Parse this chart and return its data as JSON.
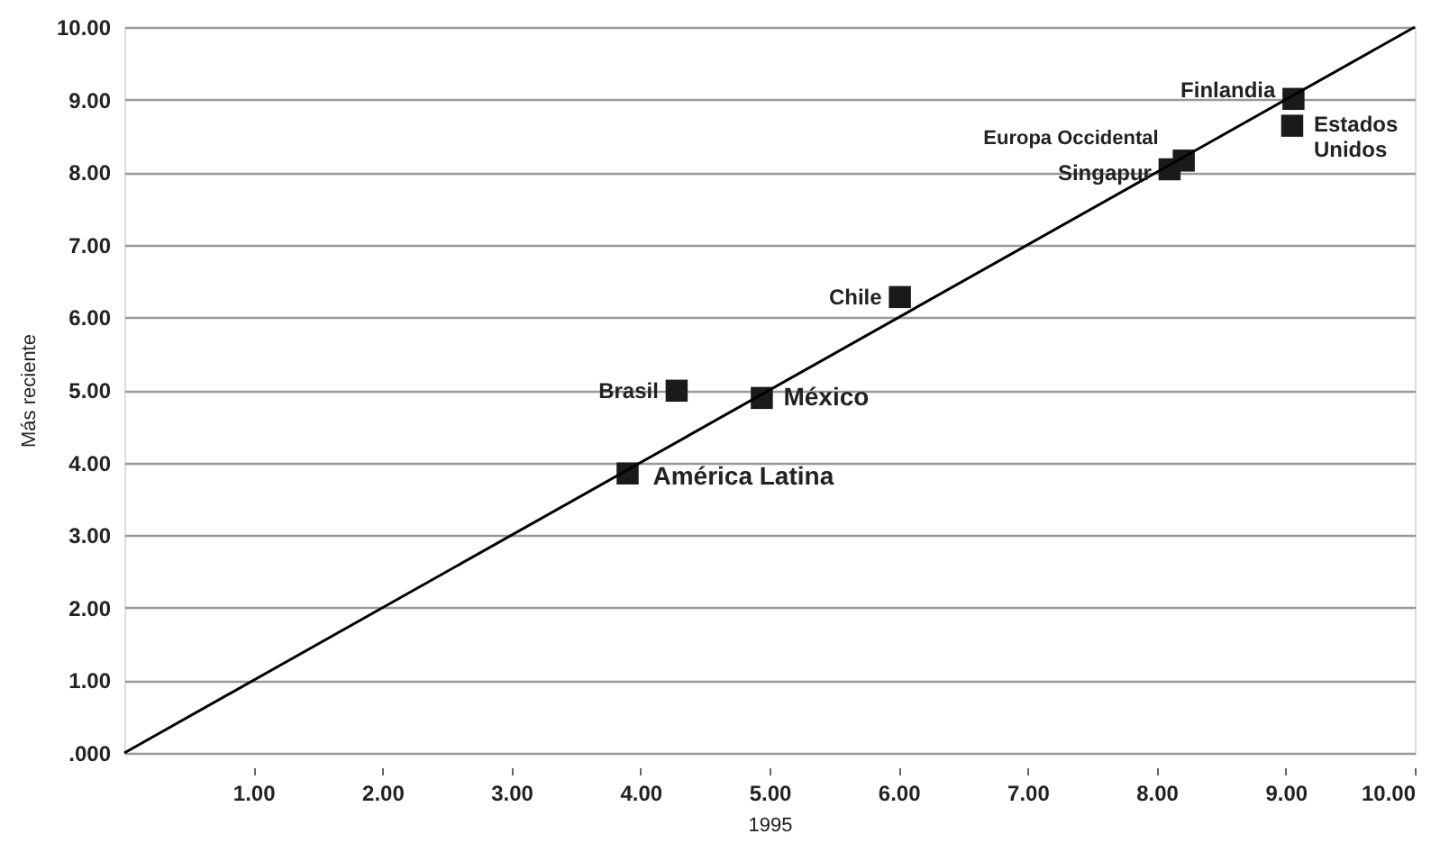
{
  "chart_data": {
    "type": "scatter",
    "xlabel": "1995",
    "ylabel": "Más reciente",
    "xlim": [
      0,
      10
    ],
    "ylim": [
      0,
      10
    ],
    "xticks": [
      {
        "value": 1,
        "label": "1.00"
      },
      {
        "value": 2,
        "label": "2.00"
      },
      {
        "value": 3,
        "label": "3.00"
      },
      {
        "value": 4,
        "label": "4.00"
      },
      {
        "value": 5,
        "label": "5.00"
      },
      {
        "value": 6,
        "label": "6.00"
      },
      {
        "value": 7,
        "label": "7.00"
      },
      {
        "value": 8,
        "label": "8.00"
      },
      {
        "value": 9,
        "label": "9.00"
      },
      {
        "value": 10,
        "label": "10.00"
      }
    ],
    "yticks": [
      {
        "value": 0,
        "label": ".000"
      },
      {
        "value": 1,
        "label": "1.00"
      },
      {
        "value": 2,
        "label": "2.00"
      },
      {
        "value": 3,
        "label": "3.00"
      },
      {
        "value": 4,
        "label": "4.00"
      },
      {
        "value": 5,
        "label": "5.00"
      },
      {
        "value": 6,
        "label": "6.00"
      },
      {
        "value": 7,
        "label": "7.00"
      },
      {
        "value": 8,
        "label": "8.00"
      },
      {
        "value": 9,
        "label": "9.00"
      },
      {
        "value": 10,
        "label": "10.00"
      }
    ],
    "grid": "y",
    "series": [
      {
        "marker": "square",
        "color": "#1a1a1a",
        "x": [
          3.9,
          4.28,
          4.94,
          6.01,
          8.1,
          8.21,
          9.06,
          9.05
        ],
        "values": [
          3.85,
          4.99,
          4.89,
          6.28,
          8.04,
          8.16,
          9.01,
          8.64
        ]
      },
      {
        "type": "line",
        "color": "#000000",
        "x": [
          0,
          10
        ],
        "values": [
          0,
          10
        ]
      }
    ],
    "annotations": [
      {
        "text": "América Latina",
        "x": 3.9,
        "y": 3.85
      },
      {
        "text": "Brasil",
        "x": 4.28,
        "y": 4.99
      },
      {
        "text": "México",
        "x": 4.94,
        "y": 4.89
      },
      {
        "text": "Chile",
        "x": 6.01,
        "y": 6.28
      },
      {
        "text": "Singapur",
        "x": 8.1,
        "y": 8.04
      },
      {
        "text": "Europa Occidental",
        "x": 8.21,
        "y": 8.16
      },
      {
        "text": "Finlandia",
        "x": 9.06,
        "y": 9.01
      },
      {
        "text": "Estados Unidos",
        "x": 9.05,
        "y": 8.64
      }
    ]
  }
}
